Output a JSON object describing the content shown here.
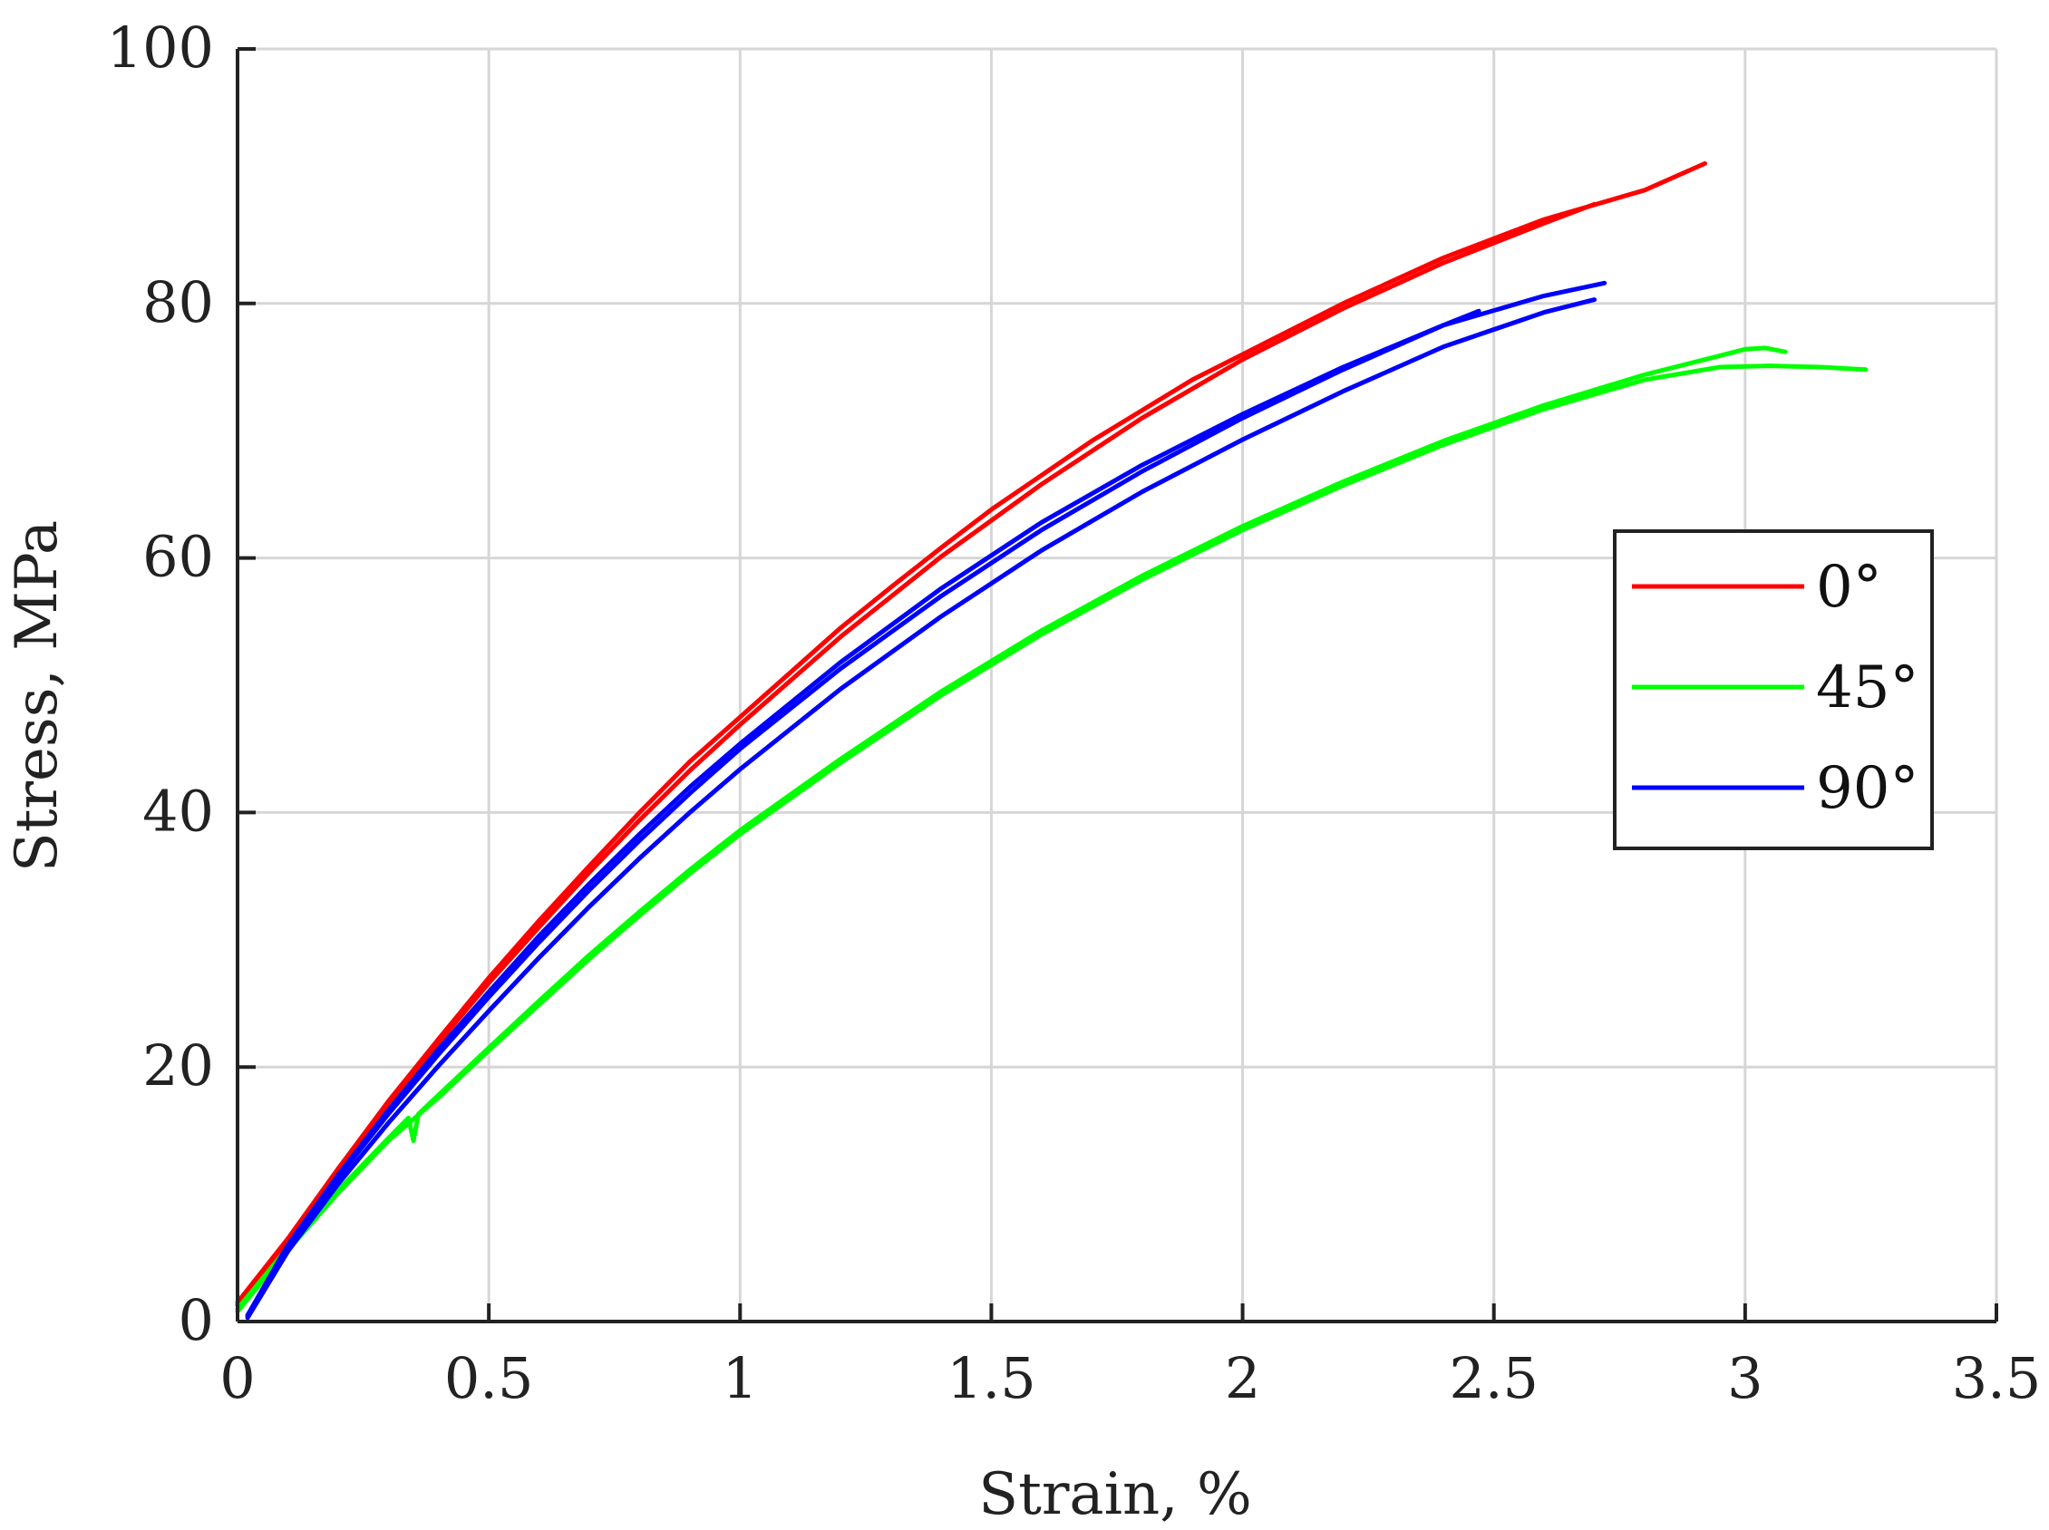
{
  "chart_data": {
    "type": "line",
    "title": "",
    "xlabel": "Strain, %",
    "ylabel": "Stress, MPa",
    "xlim": [
      0,
      3.5
    ],
    "ylim": [
      0,
      100
    ],
    "xticks": [
      0,
      0.5,
      1,
      1.5,
      2,
      2.5,
      3,
      3.5
    ],
    "xtick_labels": [
      "0",
      "0.5",
      "1",
      "1.5",
      "2",
      "2.5",
      "3",
      "3.5"
    ],
    "yticks": [
      0,
      20,
      40,
      60,
      80,
      100
    ],
    "ytick_labels": [
      "0",
      "20",
      "40",
      "60",
      "80",
      "100"
    ],
    "grid": true,
    "legend": {
      "position": "right",
      "entries": [
        {
          "label": "0°",
          "color": "#ff0000"
        },
        {
          "label": "45°",
          "color": "#00ff00"
        },
        {
          "label": "90°",
          "color": "#0000ff"
        }
      ]
    },
    "series": [
      {
        "name": "0°",
        "color": "#ff0000",
        "x": [
          0,
          0.1,
          0.2,
          0.3,
          0.4,
          0.5,
          0.6,
          0.7,
          0.8,
          0.9,
          1.0,
          1.1,
          1.2,
          1.3,
          1.4,
          1.5,
          1.6,
          1.7,
          1.8,
          1.9,
          2.0,
          2.2,
          2.4,
          2.6,
          2.8,
          2.92
        ],
        "y": [
          1.5,
          6.5,
          12.0,
          17.3,
          22.2,
          27.0,
          31.5,
          35.8,
          40.0,
          44.0,
          47.5,
          51.0,
          54.5,
          57.7,
          60.8,
          63.8,
          66.5,
          69.2,
          71.6,
          74.0,
          76.0,
          80.0,
          83.6,
          86.6,
          88.9,
          91.0
        ]
      },
      {
        "name": "0°",
        "color": "#ff0000",
        "x": [
          0,
          0.1,
          0.2,
          0.3,
          0.4,
          0.5,
          0.6,
          0.7,
          0.8,
          0.9,
          1.0,
          1.2,
          1.4,
          1.6,
          1.8,
          2.0,
          2.2,
          2.4,
          2.6,
          2.7
        ],
        "y": [
          1.3,
          6.2,
          11.7,
          17.0,
          21.9,
          26.6,
          31.0,
          35.3,
          39.4,
          43.3,
          46.9,
          53.8,
          60.1,
          65.8,
          71.0,
          75.6,
          79.6,
          83.2,
          86.3,
          87.8
        ]
      },
      {
        "name": "45°",
        "color": "#00ff00",
        "x": [
          0,
          0.1,
          0.2,
          0.3,
          0.34,
          0.35,
          0.36,
          0.4,
          0.5,
          0.6,
          0.7,
          0.8,
          0.9,
          1.0,
          1.2,
          1.4,
          1.6,
          1.8,
          2.0,
          2.2,
          2.4,
          2.6,
          2.8,
          2.95,
          3.0,
          3.04,
          3.08
        ],
        "y": [
          1.0,
          5.8,
          10.3,
          14.4,
          16.0,
          14.2,
          16.3,
          17.8,
          21.5,
          25.2,
          28.8,
          32.2,
          35.5,
          38.6,
          44.2,
          49.5,
          54.3,
          58.6,
          62.5,
          66.0,
          69.2,
          72.0,
          74.4,
          75.9,
          76.4,
          76.5,
          76.2
        ]
      },
      {
        "name": "45°",
        "color": "#00ff00",
        "x": [
          0,
          0.1,
          0.2,
          0.3,
          0.4,
          0.5,
          0.6,
          0.7,
          0.8,
          0.9,
          1.0,
          1.2,
          1.4,
          1.6,
          1.8,
          2.0,
          2.2,
          2.4,
          2.6,
          2.8,
          2.95,
          3.05,
          3.15,
          3.24
        ],
        "y": [
          0.8,
          5.6,
          10.1,
          14.2,
          17.6,
          21.3,
          24.9,
          28.5,
          31.9,
          35.2,
          38.3,
          43.9,
          49.2,
          54.0,
          58.3,
          62.2,
          65.7,
          68.9,
          71.7,
          74.0,
          75.0,
          75.1,
          75.0,
          74.8
        ]
      },
      {
        "name": "90°",
        "color": "#0000ff",
        "x": [
          0.02,
          0.1,
          0.2,
          0.3,
          0.4,
          0.5,
          0.6,
          0.7,
          0.8,
          0.9,
          1.0,
          1.2,
          1.4,
          1.6,
          1.8,
          2.0,
          2.2,
          2.4,
          2.6,
          2.72
        ],
        "y": [
          0.5,
          6.0,
          11.5,
          16.6,
          21.4,
          25.9,
          30.3,
          34.4,
          38.3,
          42.0,
          45.4,
          51.8,
          57.6,
          62.8,
          67.3,
          71.3,
          75.0,
          78.3,
          80.6,
          81.6
        ]
      },
      {
        "name": "90°",
        "color": "#0000ff",
        "x": [
          0.02,
          0.1,
          0.2,
          0.3,
          0.4,
          0.5,
          0.6,
          0.7,
          0.8,
          0.9,
          1.0,
          1.2,
          1.4,
          1.6,
          1.8,
          2.0,
          2.2,
          2.4,
          2.47
        ],
        "y": [
          0.4,
          5.8,
          11.3,
          16.3,
          21.0,
          25.5,
          29.8,
          33.9,
          37.8,
          41.5,
          45.0,
          51.3,
          57.0,
          62.2,
          66.8,
          71.0,
          74.8,
          78.3,
          79.4
        ]
      },
      {
        "name": "90°",
        "color": "#0000ff",
        "x": [
          0.02,
          0.1,
          0.2,
          0.3,
          0.4,
          0.5,
          0.6,
          0.7,
          0.8,
          0.9,
          1.0,
          1.2,
          1.4,
          1.6,
          1.8,
          2.0,
          2.2,
          2.4,
          2.6,
          2.7
        ],
        "y": [
          0.3,
          5.5,
          10.8,
          15.6,
          20.1,
          24.4,
          28.6,
          32.6,
          36.4,
          40.0,
          43.4,
          49.7,
          55.4,
          60.6,
          65.2,
          69.3,
          73.1,
          76.6,
          79.3,
          80.3
        ]
      }
    ]
  }
}
